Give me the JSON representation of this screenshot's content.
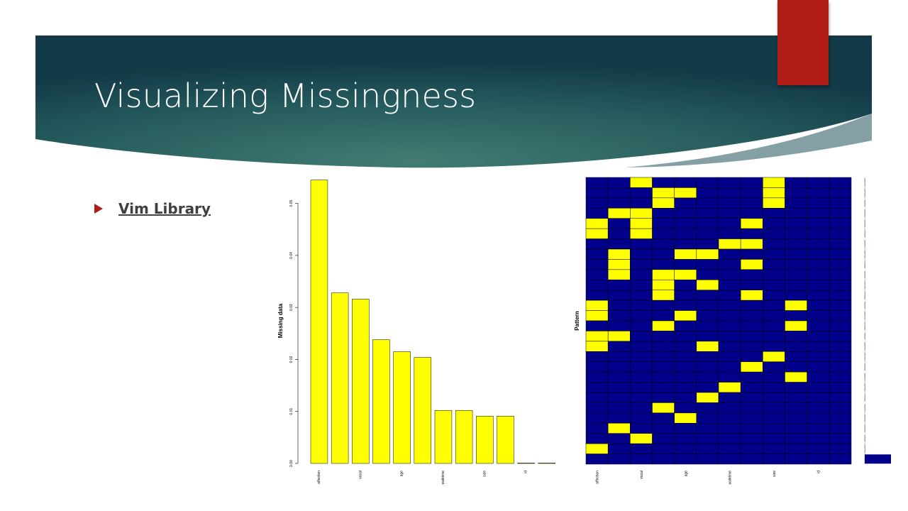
{
  "slide": {
    "title": "Visualizing Missingness",
    "bullet": "Vim Library"
  },
  "colors": {
    "banner_dark": "#16404a",
    "banner_mid": "#3f7a70",
    "accent_red": "#b01c16",
    "missing": "#ffff00",
    "observed": "#00008b"
  },
  "chart_data": [
    {
      "type": "bar",
      "categories": [
        "affection",
        "vocal",
        "age",
        "walktime",
        "size",
        "id"
      ],
      "bars": [
        0.0545,
        0.0328,
        0.0316,
        0.0238,
        0.0215,
        0.0204,
        0.0102,
        0.0102,
        0.0091,
        0.0091,
        0.0001,
        0.0001
      ],
      "ylabel": "Missing data",
      "yticks": [
        "0.00",
        "0.01",
        "0.02",
        "0.03",
        "0.04",
        "0.05"
      ],
      "ylim": [
        0,
        0.055
      ]
    },
    {
      "type": "heatmap",
      "ylabel": "Pattern",
      "categories": [
        "affection",
        "vocal",
        "age",
        "walktime",
        "size",
        "id"
      ],
      "n_columns": 12,
      "n_rows": 28,
      "missing_cells": [
        [
          0,
          2
        ],
        [
          0,
          8
        ],
        [
          1,
          3
        ],
        [
          1,
          4
        ],
        [
          1,
          8
        ],
        [
          2,
          3
        ],
        [
          2,
          8
        ],
        [
          3,
          1
        ],
        [
          3,
          2
        ],
        [
          4,
          0
        ],
        [
          4,
          2
        ],
        [
          4,
          7
        ],
        [
          5,
          0
        ],
        [
          5,
          2
        ],
        [
          6,
          6
        ],
        [
          6,
          7
        ],
        [
          7,
          1
        ],
        [
          7,
          4
        ],
        [
          7,
          5
        ],
        [
          8,
          1
        ],
        [
          8,
          7
        ],
        [
          9,
          1
        ],
        [
          9,
          3
        ],
        [
          9,
          4
        ],
        [
          10,
          3
        ],
        [
          10,
          5
        ],
        [
          11,
          3
        ],
        [
          11,
          7
        ],
        [
          12,
          0
        ],
        [
          12,
          9
        ],
        [
          13,
          0
        ],
        [
          13,
          4
        ],
        [
          14,
          3
        ],
        [
          14,
          9
        ],
        [
          15,
          0
        ],
        [
          15,
          1
        ],
        [
          16,
          0
        ],
        [
          16,
          5
        ],
        [
          17,
          8
        ],
        [
          18,
          7
        ],
        [
          19,
          9
        ],
        [
          20,
          6
        ],
        [
          21,
          5
        ],
        [
          22,
          3
        ],
        [
          23,
          4
        ],
        [
          24,
          1
        ],
        [
          25,
          2
        ],
        [
          26,
          0
        ]
      ],
      "pattern_proportions": [
        0.003,
        0.003,
        0.003,
        0.003,
        0.003,
        0.003,
        0.003,
        0.003,
        0.003,
        0.003,
        0.003,
        0.003,
        0.003,
        0.003,
        0.003,
        0.003,
        0.003,
        0.003,
        0.005,
        0.005,
        0.005,
        0.005,
        0.005,
        0.005,
        0.008,
        0.008,
        0.012,
        0.9
      ]
    }
  ]
}
